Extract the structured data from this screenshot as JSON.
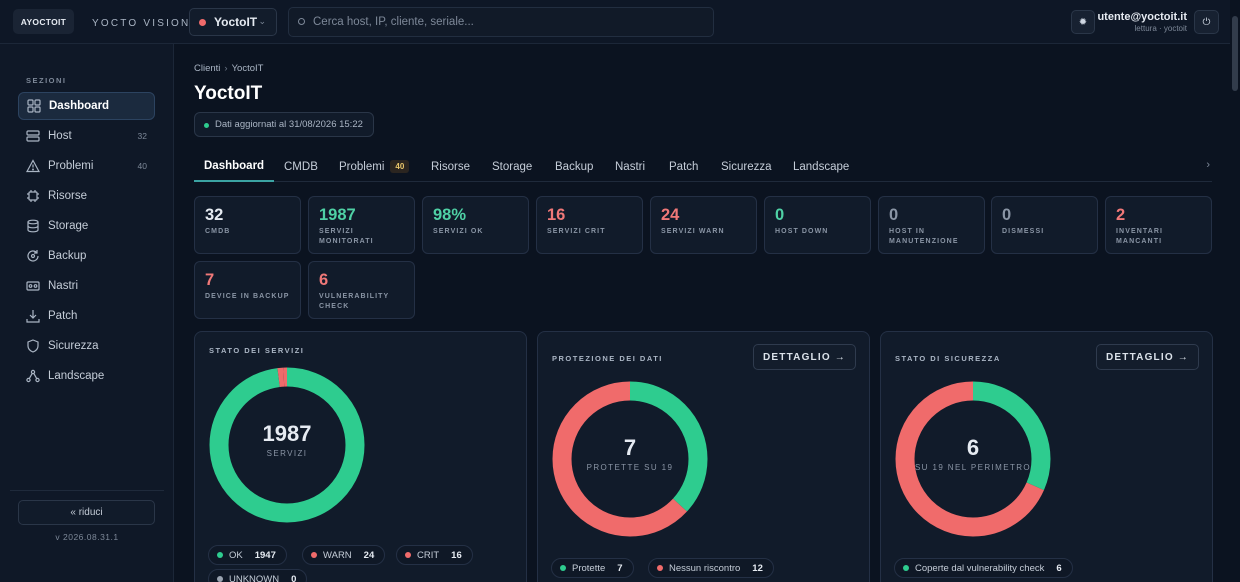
{
  "topbar": {
    "logo_text": "AYOCTOIT",
    "brand": "YOCTO VISION",
    "client": "YoctoIT",
    "search_placeholder": "Cerca host, IP, cliente, seriale...",
    "user_email": "utente@yoctoit.it",
    "user_role": "lettura · yoctoit"
  },
  "sidebar": {
    "section_label": "SEZIONI",
    "items": [
      {
        "label": "Dashboard",
        "count": "",
        "icon": "grid-icon"
      },
      {
        "label": "Host",
        "count": "32",
        "icon": "server-icon"
      },
      {
        "label": "Problemi",
        "count": "40",
        "icon": "warning-icon"
      },
      {
        "label": "Risorse",
        "count": "",
        "icon": "chip-icon"
      },
      {
        "label": "Storage",
        "count": "",
        "icon": "database-icon"
      },
      {
        "label": "Backup",
        "count": "",
        "icon": "backup-icon"
      },
      {
        "label": "Nastri",
        "count": "",
        "icon": "tape-icon"
      },
      {
        "label": "Patch",
        "count": "",
        "icon": "download-icon"
      },
      {
        "label": "Sicurezza",
        "count": "",
        "icon": "shield-icon"
      },
      {
        "label": "Landscape",
        "count": "",
        "icon": "network-icon"
      }
    ],
    "collapse_label": "« riduci",
    "version": "v 2026.08.31.1"
  },
  "main": {
    "breadcrumb": [
      "Clienti",
      "YoctoIT"
    ],
    "title": "YoctoIT",
    "updated": "Dati aggiornati al 31/08/2026 15:22",
    "tabs": [
      {
        "label": "Dashboard"
      },
      {
        "label": "CMDB"
      },
      {
        "label": "Problemi",
        "badge": "40"
      },
      {
        "label": "Risorse"
      },
      {
        "label": "Storage"
      },
      {
        "label": "Backup"
      },
      {
        "label": "Nastri"
      },
      {
        "label": "Patch"
      },
      {
        "label": "Sicurezza"
      },
      {
        "label": "Landscape"
      }
    ],
    "kpis": [
      {
        "value": "32",
        "label": "CMDB",
        "color": "#e6ebf2"
      },
      {
        "value": "1987",
        "label": "SERVIZI MONITORATI",
        "color": "#4fd1a5"
      },
      {
        "value": "98%",
        "label": "SERVIZI OK",
        "color": "#4fd1a5"
      },
      {
        "value": "16",
        "label": "SERVIZI CRIT",
        "color": "#f07878"
      },
      {
        "value": "24",
        "label": "SERVIZI WARN",
        "color": "#f07878"
      },
      {
        "value": "0",
        "label": "HOST DOWN",
        "color": "#4fd1a5"
      },
      {
        "value": "0",
        "label": "HOST IN MANUTENZIONE",
        "color": "#8a95a5"
      },
      {
        "value": "0",
        "label": "DISMESSI",
        "color": "#8a95a5"
      },
      {
        "value": "2",
        "label": "INVENTARI MANCANTI",
        "color": "#f07878"
      },
      {
        "value": "7",
        "label": "DEVICE IN BACKUP",
        "color": "#f07878"
      },
      {
        "value": "6",
        "label": "VULNERABILITY CHECK",
        "color": "#f07878"
      }
    ],
    "cards": [
      {
        "title": "STATO DEI SERVIZI",
        "center_value": "1987",
        "center_label": "SERVIZI",
        "segments": [
          {
            "label": "OK",
            "value": 1947,
            "color": "#2ecc8f"
          },
          {
            "label": "WARN",
            "value": 24,
            "color": "#f06b6b"
          },
          {
            "label": "CRIT",
            "value": 16,
            "color": "#f06b6b"
          },
          {
            "label": "UNKNOWN",
            "value": 0,
            "color": "#9aa3b0"
          }
        ]
      },
      {
        "title": "PROTEZIONE DEI DATI",
        "button": "DETTAGLIO →",
        "center_value": "7",
        "center_label": "PROTETTE SU 19",
        "segments": [
          {
            "label": "Protette",
            "value": 7,
            "color": "#2ecc8f"
          },
          {
            "label": "Nessun riscontro",
            "value": 12,
            "color": "#f06b6b"
          }
        ]
      },
      {
        "title": "STATO DI SICUREZZA",
        "button": "DETTAGLIO →",
        "center_value": "6",
        "center_label": "SU 19 NEL PERIMETRO",
        "segments": [
          {
            "label": "Coperte dal vulnerability check",
            "value": 6,
            "color": "#2ecc8f"
          },
          {
            "label": "",
            "value": 13,
            "color": "#f06b6b"
          }
        ]
      }
    ]
  }
}
